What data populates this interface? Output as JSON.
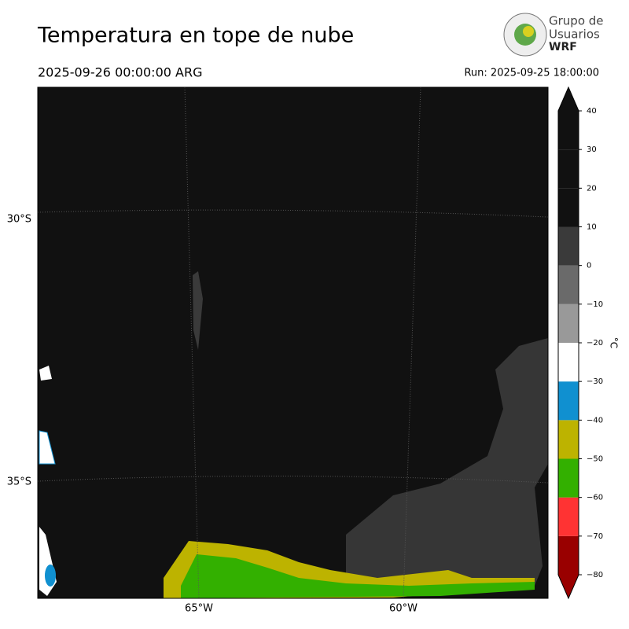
{
  "header": {
    "title": "Temperatura en tope de nube",
    "valid_time": "2025-09-26 00:00:00 ARG",
    "run": "Run: 2025-09-25 18:00:00"
  },
  "logo": {
    "line1": "Grupo de",
    "line2": "Usuarios",
    "line3": "WRF"
  },
  "map": {
    "lat_labels": [
      "30°S",
      "35°S"
    ],
    "lon_labels": [
      "65°W",
      "60°W"
    ]
  },
  "colorbar": {
    "label": "°C",
    "ticks": [
      {
        "value": -80,
        "label": "−80"
      },
      {
        "value": -70,
        "label": "−70"
      },
      {
        "value": -60,
        "label": "−60"
      },
      {
        "value": -50,
        "label": "−50"
      },
      {
        "value": -40,
        "label": "−40"
      },
      {
        "value": -30,
        "label": "−30"
      },
      {
        "value": -20,
        "label": "−20"
      },
      {
        "value": -10,
        "label": "−10"
      },
      0,
      10,
      20,
      30,
      40
    ],
    "colors": [
      "#990000",
      "#ff3333",
      "#33b000",
      "#bdb300",
      "#1090d0",
      "#ffffff",
      "#999999",
      "#6a6a6a",
      "#3a3a3a",
      "#111111",
      "#111111",
      "#111111"
    ]
  }
}
